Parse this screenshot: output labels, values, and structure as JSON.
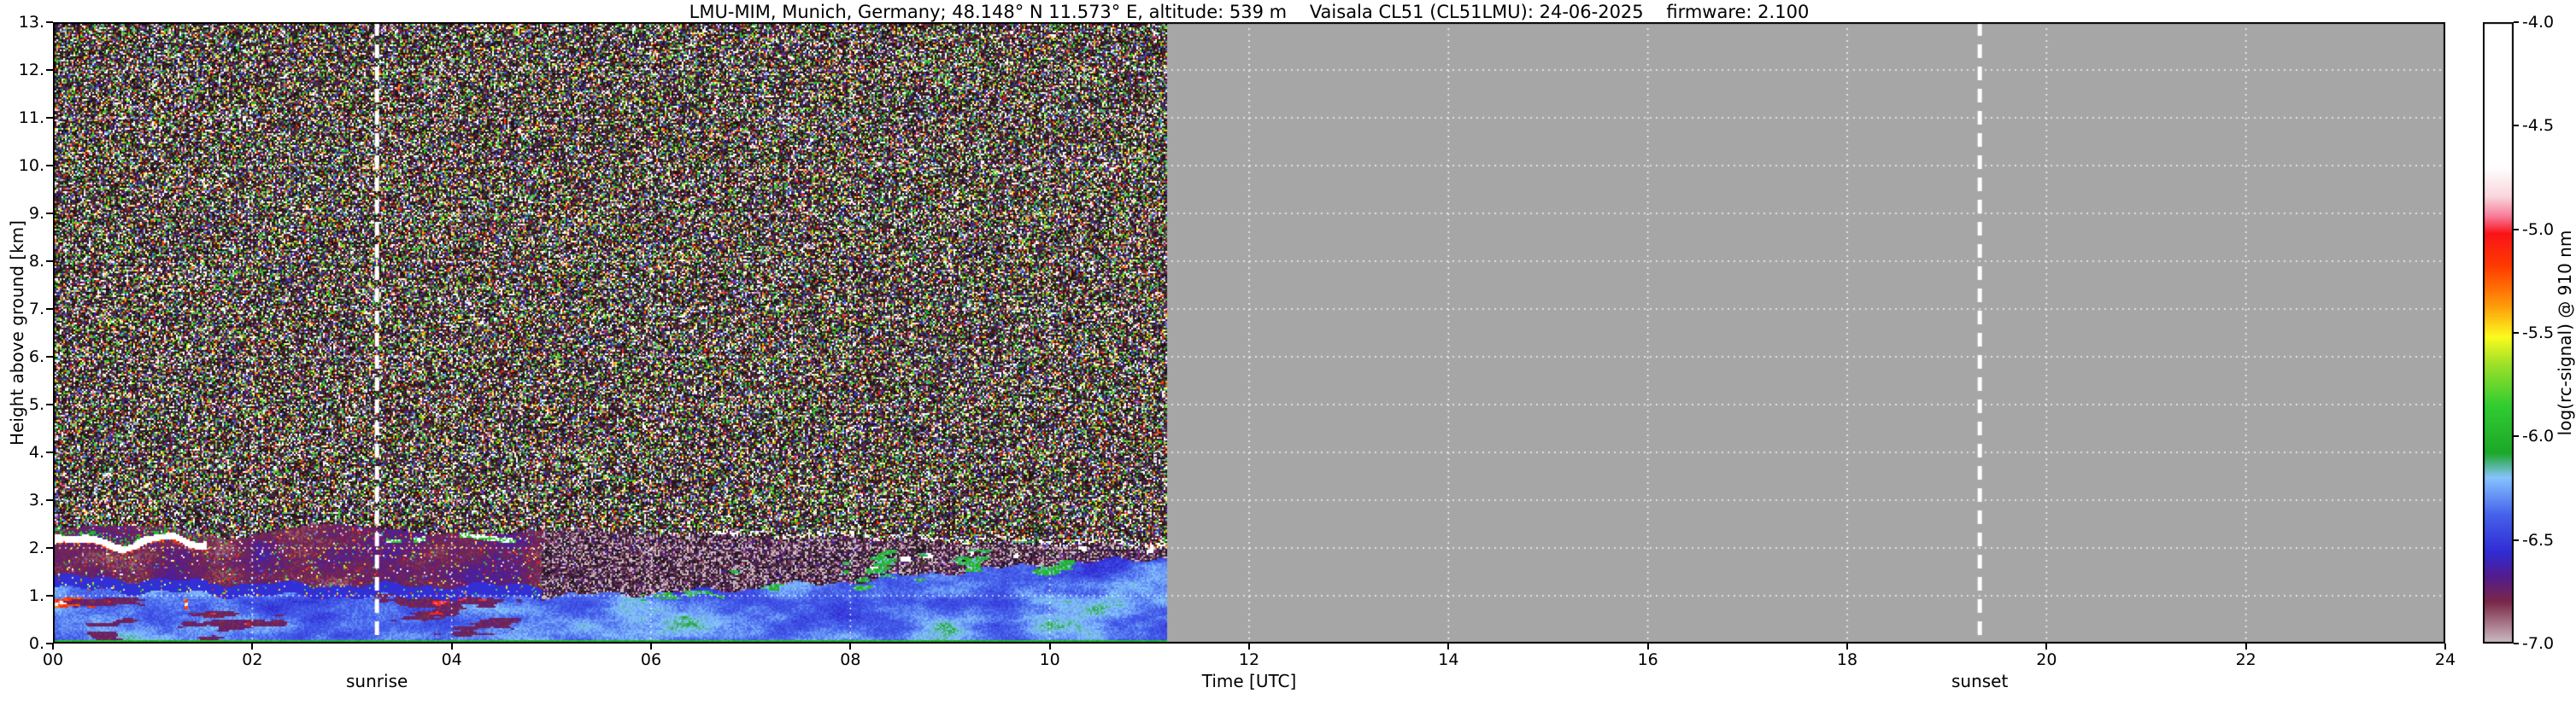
{
  "chart_data": {
    "type": "heatmap",
    "title": "LMU-MIM, Munich, Germany; 48.148° N 11.573° E, altitude: 539 m    Vaisala CL51 (CL51LMU): 24-06-2025    firmware: 2.100",
    "title_parts": [
      "LMU-MIM, Munich, Germany; 48.148° N 11.573° E, altitude: 539 m",
      "Vaisala CL51 (CL51LMU): 24-06-2025",
      "firmware: 2.100"
    ],
    "xlabel": "Time [UTC]",
    "ylabel": "Height above ground [km]",
    "xlim": [
      0,
      24
    ],
    "ylim": [
      0,
      13
    ],
    "x_ticks": [
      "00",
      "02",
      "04",
      "06",
      "08",
      "10",
      "12",
      "14",
      "16",
      "18",
      "20",
      "22",
      "24"
    ],
    "y_ticks": [
      "0.",
      "1.",
      "2.",
      "3.",
      "4.",
      "5.",
      "6.",
      "7.",
      "8.",
      "9.",
      "10.",
      "11.",
      "12.",
      "13."
    ],
    "grid": true,
    "colorbar": {
      "label": "log(rc-signal) @ 910 nm",
      "range": [
        -7.0,
        -4.0
      ],
      "ticks": [
        -4.0,
        -4.5,
        -5.0,
        -5.5,
        -6.0,
        -6.5,
        -7.0
      ],
      "tick_labels": [
        "-4.0",
        "-4.5",
        "-5.0",
        "-5.5",
        "-6.0",
        "-6.5",
        "-7.0"
      ],
      "position": "right"
    },
    "annotations": [
      {
        "label": "sunrise",
        "x_utc": 3.25
      },
      {
        "label": "sunset",
        "x_utc": 19.33
      }
    ],
    "colors": {
      "no_data_color": "#a6a6a6",
      "grid_color": "#ffffff",
      "annotation_line_color": "#ffffff",
      "axis_color": "#000000",
      "background": "#ffffff"
    },
    "colormap": [
      [
        -7.0,
        205,
        190,
        198
      ],
      [
        -6.9,
        165,
        115,
        133
      ],
      [
        -6.8,
        122,
        40,
        72
      ],
      [
        -6.68,
        84,
        28,
        140
      ],
      [
        -6.56,
        48,
        44,
        212
      ],
      [
        -6.38,
        70,
        98,
        235
      ],
      [
        -6.2,
        135,
        196,
        255
      ],
      [
        -6.08,
        28,
        168,
        40
      ],
      [
        -5.85,
        50,
        205,
        50
      ],
      [
        -5.65,
        160,
        225,
        40
      ],
      [
        -5.52,
        252,
        252,
        30
      ],
      [
        -5.36,
        255,
        150,
        10
      ],
      [
        -5.18,
        255,
        60,
        0
      ],
      [
        -5.02,
        250,
        20,
        25
      ],
      [
        -4.94,
        248,
        120,
        150
      ],
      [
        -4.84,
        250,
        215,
        222
      ],
      [
        -4.7,
        255,
        255,
        255
      ],
      [
        -4.0,
        255,
        255,
        255
      ]
    ],
    "features": {
      "data_end_utc": 11.17,
      "bl_height": {
        "t": [
          0,
          2,
          4,
          6,
          7,
          8,
          9,
          10,
          11.2
        ],
        "z": [
          1.15,
          1.0,
          0.95,
          1.05,
          1.15,
          1.3,
          1.5,
          1.65,
          1.8
        ]
      },
      "residual_layer_top_km": 2.42,
      "cloud_layer_1": {
        "t0": 0,
        "t1": 1.55,
        "base_km": 2.08
      },
      "cloud_layer_2": {
        "t0": 3.35,
        "t1": 4.65,
        "base_km": 2.2
      },
      "green_aerosol_layer": {
        "t0": 5.2,
        "t1": 10.7
      },
      "red_plume": {
        "t0": 0,
        "t1": 1.35,
        "z_km": 0.82
      }
    }
  }
}
